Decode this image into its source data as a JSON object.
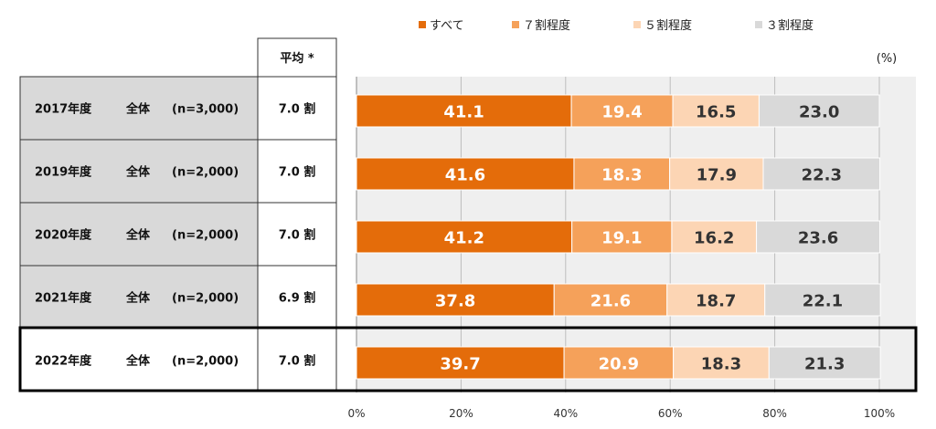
{
  "legend": [
    {
      "label": "すべて",
      "color": "#E46C0A"
    },
    {
      "label": "７割程度",
      "color": "#F5A15A"
    },
    {
      "label": "５割程度",
      "color": "#FCD5B4"
    },
    {
      "label": "３割程度",
      "color": "#D9D9D9"
    }
  ],
  "unit_label": "(%)",
  "table_header": "平均 *",
  "rows": [
    {
      "year": "2017年度",
      "group": "全体",
      "n": "(n=3,000)",
      "avg": "7.0 割"
    },
    {
      "year": "2019年度",
      "group": "全体",
      "n": "(n=2,000)",
      "avg": "7.0 割"
    },
    {
      "year": "2020年度",
      "group": "全体",
      "n": "(n=2,000)",
      "avg": "7.0 割"
    },
    {
      "year": "2021年度",
      "group": "全体",
      "n": "(n=2,000)",
      "avg": "6.9 割"
    },
    {
      "year": "2022年度",
      "group": "全体",
      "n": "(n=2,000)",
      "avg": "7.0 割"
    }
  ],
  "highlighted_row": 4,
  "chart_data": {
    "type": "bar",
    "orientation": "horizontal",
    "stacked": true,
    "categories": [
      "2017年度",
      "2019年度",
      "2020年度",
      "2021年度",
      "2022年度"
    ],
    "series": [
      {
        "name": "すべて",
        "values": [
          41.1,
          41.6,
          41.2,
          37.8,
          39.7
        ],
        "color": "#E46C0A"
      },
      {
        "name": "７割程度",
        "values": [
          19.4,
          18.3,
          19.1,
          21.6,
          20.9
        ],
        "color": "#F5A15A"
      },
      {
        "name": "５割程度",
        "values": [
          16.5,
          17.9,
          16.2,
          18.7,
          18.3
        ],
        "color": "#FCD5B4"
      },
      {
        "name": "３割程度",
        "values": [
          23.0,
          22.3,
          23.6,
          22.1,
          21.3
        ],
        "color": "#D9D9D9"
      }
    ],
    "x_ticks": [
      "0%",
      "20%",
      "40%",
      "60%",
      "80%",
      "100%"
    ],
    "xlim": [
      0,
      100
    ],
    "grid": true,
    "legend_position": "top"
  }
}
